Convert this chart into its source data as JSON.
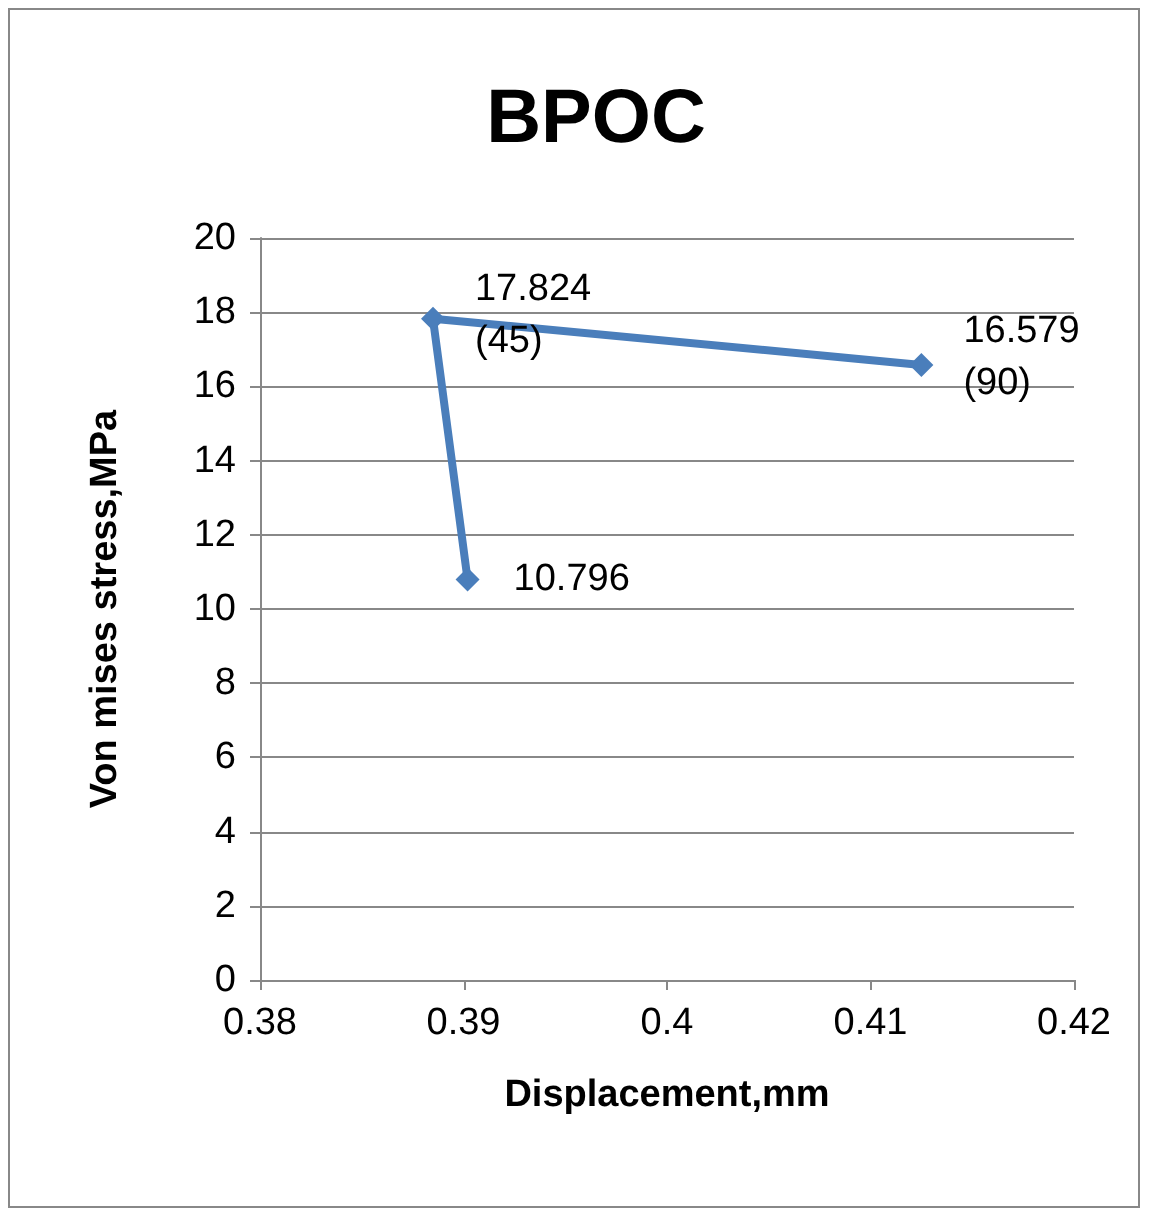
{
  "chart_data": {
    "type": "line",
    "title": "BPOC",
    "xlabel": "Displacement,mm",
    "ylabel": "Von mises stress,MPa",
    "series": [
      {
        "color": "#4a7ebb",
        "x": [
          0.3902,
          0.3885,
          0.4125
        ],
        "values": [
          10.796,
          17.824,
          16.579
        ],
        "value_labels": [
          "10.796",
          "17.824\n(45)",
          "16.579\n(90)"
        ]
      }
    ],
    "xlim": [
      0.38,
      0.42
    ],
    "xticks": [
      0.38,
      0.39,
      0.4,
      0.41,
      0.42
    ],
    "ylim": [
      0,
      20
    ],
    "yticks": [
      0,
      2,
      4,
      6,
      8,
      10,
      12,
      14,
      16,
      18,
      20
    ],
    "grid": "y",
    "marker": "diamond",
    "line_style": "solid"
  }
}
